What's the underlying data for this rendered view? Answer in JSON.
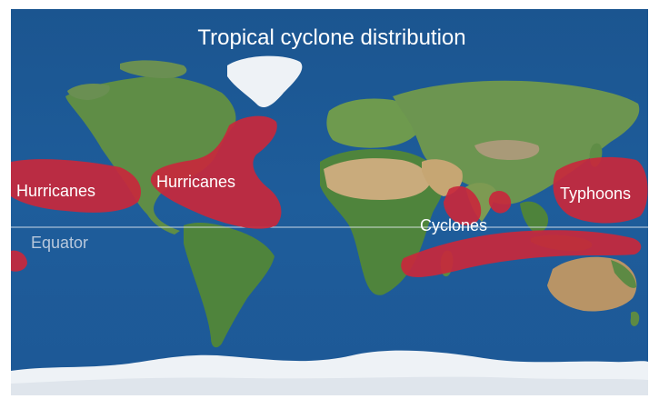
{
  "title": "Tropical cyclone distribution",
  "equator_label": "Equator",
  "regions": [
    {
      "id": "hurricanes-east-pacific",
      "label": "Hurricanes"
    },
    {
      "id": "hurricanes-atlantic",
      "label": "Hurricanes"
    },
    {
      "id": "typhoons-west-pacific",
      "label": "Typhoons"
    },
    {
      "id": "cyclones-indian-ocean",
      "label": "Cyclones"
    }
  ],
  "colors": {
    "ocean": "#1d5a97",
    "cyclone_zone": "#c8283c",
    "land_green": "#5c8b45",
    "desert": "#c7a97a",
    "ice": "#eef2f6",
    "equator_line": "#e8eef5",
    "equator_text": "#b8c8dc",
    "text": "#ffffff"
  }
}
